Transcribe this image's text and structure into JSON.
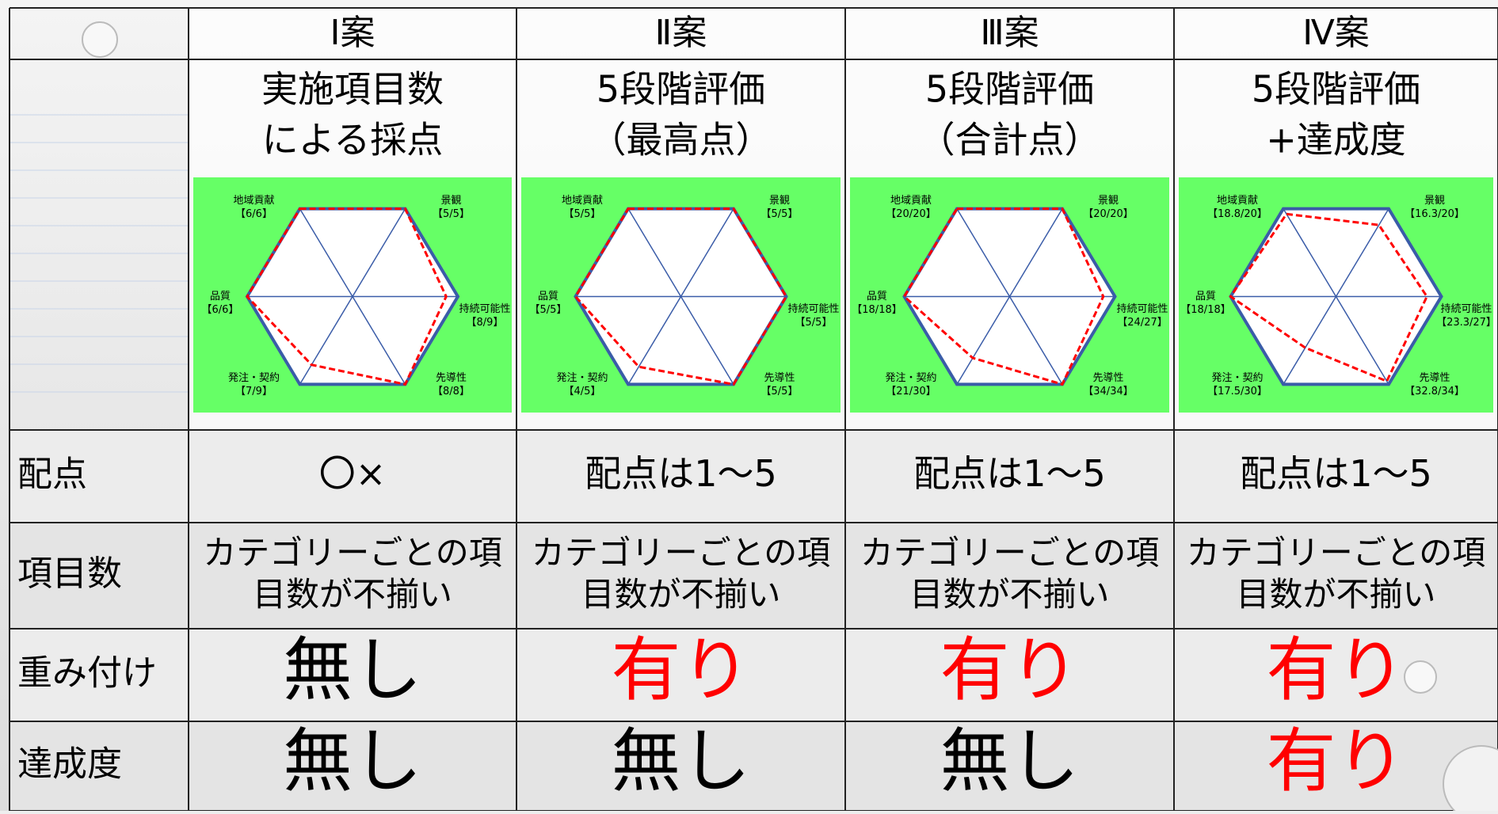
{
  "table": {
    "columns": [
      "Ⅰ案",
      "Ⅱ案",
      "Ⅲ案",
      "Ⅳ案"
    ],
    "methods": [
      [
        "実施項目数",
        "による採点"
      ],
      [
        "5段階評価",
        "（最高点）"
      ],
      [
        "5段階評価",
        "（合計点）"
      ],
      [
        "5段階評価",
        "+達成度"
      ]
    ],
    "rows": [
      {
        "label": "配点",
        "cells": [
          {
            "lines": [
              "〇×"
            ],
            "color": "#000000"
          },
          {
            "lines": [
              "配点は1～5"
            ],
            "color": "#000000"
          },
          {
            "lines": [
              "配点は1～5"
            ],
            "color": "#000000"
          },
          {
            "lines": [
              "配点は1～5"
            ],
            "color": "#000000"
          }
        ]
      },
      {
        "label": "項目数",
        "cells": [
          {
            "lines": [
              "カテゴリーごとの項",
              "目数が不揃い"
            ],
            "color": "#000000"
          },
          {
            "lines": [
              "カテゴリーごとの項",
              "目数が不揃い"
            ],
            "color": "#000000"
          },
          {
            "lines": [
              "カテゴリーごとの項",
              "目数が不揃い"
            ],
            "color": "#000000"
          },
          {
            "lines": [
              "カテゴリーごとの項",
              "目数が不揃い"
            ],
            "color": "#000000"
          }
        ]
      },
      {
        "label": "重み付け",
        "cells": [
          {
            "lines": [
              "無し"
            ],
            "color": "#000000"
          },
          {
            "lines": [
              "有り"
            ],
            "color": "#ff0000"
          },
          {
            "lines": [
              "有り"
            ],
            "color": "#ff0000"
          },
          {
            "lines": [
              "有り"
            ],
            "color": "#ff0000"
          }
        ]
      },
      {
        "label": "達成度",
        "cells": [
          {
            "lines": [
              "無し"
            ],
            "color": "#000000"
          },
          {
            "lines": [
              "無し"
            ],
            "color": "#000000"
          },
          {
            "lines": [
              "無し"
            ],
            "color": "#000000"
          },
          {
            "lines": [
              "有り"
            ],
            "color": "#ff0000"
          }
        ]
      }
    ]
  },
  "charts": [
    {
      "type": "radar",
      "categories": [
        "地域貢献",
        "景観",
        "持続可能性",
        "先導性",
        "発注・契約",
        "品質"
      ],
      "values": [
        6,
        5,
        8,
        8,
        7,
        6
      ],
      "max": [
        6,
        5,
        9,
        8,
        9,
        6
      ],
      "value_labels": [
        "【6/6】",
        "【5/5】",
        "【8/9】",
        "【8/8】",
        "【7/9】",
        "【6/6】"
      ],
      "frame_color": "#3a5ca8",
      "line_color": "#ff0000",
      "background": "#66ff66"
    },
    {
      "type": "radar",
      "categories": [
        "地域貢献",
        "景観",
        "持続可能性",
        "先導性",
        "発注・契約",
        "品質"
      ],
      "values": [
        5,
        5,
        5,
        5,
        4,
        5
      ],
      "max": [
        5,
        5,
        5,
        5,
        5,
        5
      ],
      "value_labels": [
        "【5/5】",
        "【5/5】",
        "【5/5】",
        "【5/5】",
        "【4/5】",
        "【5/5】"
      ],
      "frame_color": "#3a5ca8",
      "line_color": "#ff0000",
      "background": "#66ff66"
    },
    {
      "type": "radar",
      "categories": [
        "地域貢献",
        "景観",
        "持続可能性",
        "先導性",
        "発注・契約",
        "品質"
      ],
      "values": [
        20,
        20,
        24,
        34,
        21,
        18
      ],
      "max": [
        20,
        20,
        27,
        34,
        30,
        18
      ],
      "value_labels": [
        "【20/20】",
        "【20/20】",
        "【24/27】",
        "【34/34】",
        "【21/30】",
        "【18/18】"
      ],
      "frame_color": "#3a5ca8",
      "line_color": "#ff0000",
      "background": "#66ff66"
    },
    {
      "type": "radar",
      "categories": [
        "地域貢献",
        "景観",
        "持続可能性",
        "先導性",
        "発注・契約",
        "品質"
      ],
      "values": [
        18.8,
        16.3,
        23.3,
        32.8,
        17.5,
        18
      ],
      "max": [
        20,
        20,
        27,
        34,
        30,
        18
      ],
      "value_labels": [
        "【18.8/20】",
        "【16.3/20】",
        "【23.3/27】",
        "【32.8/34】",
        "【17.5/30】",
        "【18/18】"
      ],
      "frame_color": "#3a5ca8",
      "line_color": "#ff0000",
      "background": "#66ff66"
    }
  ]
}
